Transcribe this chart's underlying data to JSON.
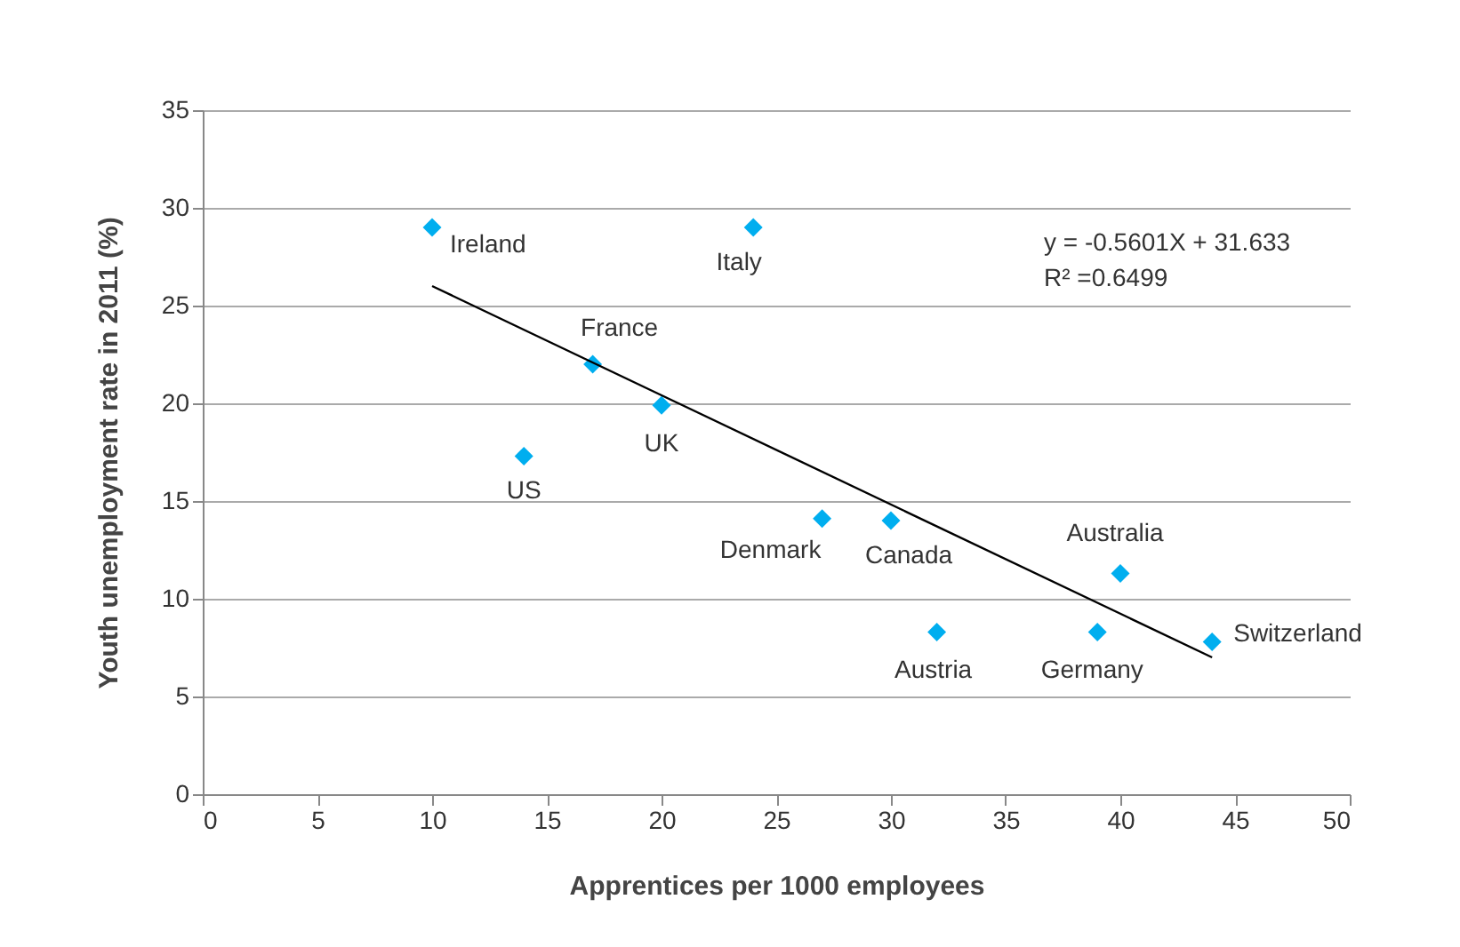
{
  "chart_data": {
    "type": "scatter",
    "xlabel": "Apprentices per 1000 employees",
    "ylabel": "Youth unemployment rate in 2011 (%)",
    "xlim": [
      0,
      50
    ],
    "xticks": [
      0,
      5,
      10,
      15,
      20,
      25,
      30,
      35,
      40,
      45,
      50
    ],
    "ylim": [
      0,
      35
    ],
    "yticks": [
      0,
      5,
      10,
      15,
      20,
      25,
      30,
      35
    ],
    "grid": "y",
    "series": [
      {
        "type": "scatter",
        "marker": "diamond",
        "color": "#00aeef",
        "x": [
          10,
          24,
          17,
          20,
          14,
          27,
          30,
          32,
          39,
          40,
          44
        ],
        "values": [
          29,
          29,
          22,
          19.9,
          17.3,
          14.1,
          14,
          8.3,
          8.3,
          11.3,
          7.8
        ]
      },
      {
        "type": "line",
        "marker": "none",
        "color": "#000000",
        "x": [
          10,
          44
        ],
        "values": [
          26.0,
          7.0
        ]
      }
    ],
    "annotations": [
      {
        "text": "Ireland",
        "x": 10,
        "y": 29
      },
      {
        "text": "Italy",
        "x": 24,
        "y": 29
      },
      {
        "text": "France",
        "x": 17,
        "y": 22
      },
      {
        "text": "UK",
        "x": 20,
        "y": 19.9
      },
      {
        "text": "US",
        "x": 14,
        "y": 17.3
      },
      {
        "text": "Denmark",
        "x": 27,
        "y": 14.1
      },
      {
        "text": "Canada",
        "x": 30,
        "y": 14
      },
      {
        "text": "Austria",
        "x": 32,
        "y": 8.3
      },
      {
        "text": "Germany",
        "x": 39,
        "y": 8.3
      },
      {
        "text": "Australia",
        "x": 40,
        "y": 11.3
      },
      {
        "text": "Switzerland",
        "x": 44,
        "y": 7.8
      },
      "y = -0.5601X + 31.633",
      "R² =0.6499"
    ]
  }
}
